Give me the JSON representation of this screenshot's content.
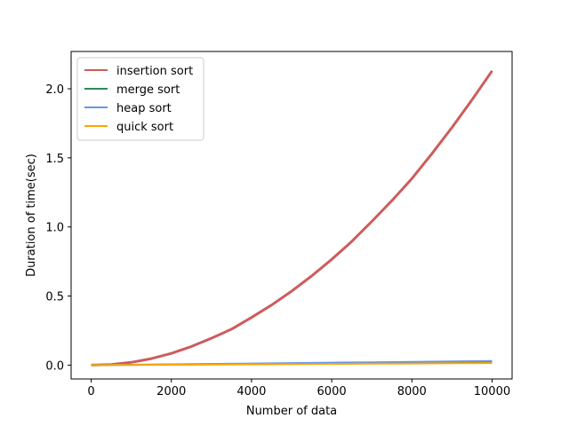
{
  "chart_data": {
    "type": "line",
    "title": "",
    "xlabel": "Number of data",
    "ylabel": "Duration of time(sec)",
    "xlim": [
      -500,
      10500
    ],
    "ylim": [
      -0.1,
      2.27
    ],
    "xticks": [
      0,
      2000,
      4000,
      6000,
      8000,
      10000
    ],
    "yticks": [
      0.0,
      0.5,
      1.0,
      1.5,
      2.0
    ],
    "xtick_labels": [
      "0",
      "2000",
      "4000",
      "6000",
      "8000",
      "10000"
    ],
    "ytick_labels": [
      "0.0",
      "0.5",
      "1.0",
      "1.5",
      "2.0"
    ],
    "grid": false,
    "legend_position": "upper-left",
    "series": [
      {
        "name": "insertion sort",
        "color": "#cd5c5c",
        "x": [
          0,
          500,
          1000,
          1500,
          2000,
          2500,
          3000,
          3500,
          4000,
          4500,
          5000,
          5500,
          6000,
          6500,
          7000,
          7500,
          8000,
          8500,
          9000,
          9500,
          10000
        ],
        "values": [
          0.0,
          0.005,
          0.02,
          0.047,
          0.085,
          0.135,
          0.195,
          0.26,
          0.345,
          0.435,
          0.535,
          0.645,
          0.765,
          0.895,
          1.04,
          1.19,
          1.35,
          1.53,
          1.72,
          1.92,
          2.13
        ]
      },
      {
        "name": "merge sort",
        "color": "#2e8b57",
        "x": [
          0,
          1000,
          2000,
          3000,
          4000,
          5000,
          6000,
          7000,
          8000,
          9000,
          10000
        ],
        "values": [
          0.0,
          0.002,
          0.004,
          0.006,
          0.008,
          0.01,
          0.012,
          0.014,
          0.016,
          0.018,
          0.02
        ]
      },
      {
        "name": "heap sort",
        "color": "#6495ed",
        "x": [
          0,
          1000,
          2000,
          3000,
          4000,
          5000,
          6000,
          7000,
          8000,
          9000,
          10000
        ],
        "values": [
          0.0,
          0.003,
          0.006,
          0.009,
          0.012,
          0.015,
          0.018,
          0.021,
          0.024,
          0.027,
          0.03
        ]
      },
      {
        "name": "quick sort",
        "color": "#ffa500",
        "x": [
          0,
          1000,
          2000,
          3000,
          4000,
          5000,
          6000,
          7000,
          8000,
          9000,
          10000
        ],
        "values": [
          0.0,
          0.0015,
          0.003,
          0.0045,
          0.006,
          0.0075,
          0.009,
          0.0105,
          0.012,
          0.0135,
          0.015
        ]
      }
    ]
  }
}
